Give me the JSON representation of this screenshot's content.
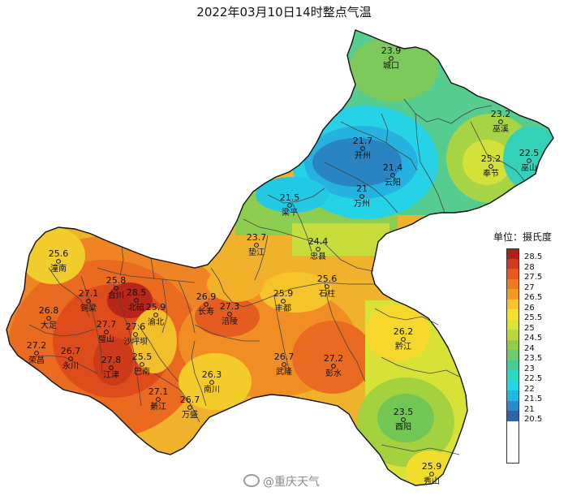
{
  "title": "2022年03月10日14时整点气温",
  "legend": {
    "title": "单位：摄氏度",
    "levels": [
      {
        "label": "28.5",
        "color": "#b01e14"
      },
      {
        "label": "28",
        "color": "#d23a1c"
      },
      {
        "label": "27.5",
        "color": "#e65a20"
      },
      {
        "label": "27",
        "color": "#ee7a22"
      },
      {
        "label": "26.5",
        "color": "#f39a26"
      },
      {
        "label": "26",
        "color": "#f7c22a"
      },
      {
        "label": "25.5",
        "color": "#f4df2c"
      },
      {
        "label": "25",
        "color": "#dde334"
      },
      {
        "label": "24.5",
        "color": "#b8d83c"
      },
      {
        "label": "24",
        "color": "#93cc4a"
      },
      {
        "label": "23.5",
        "color": "#6ccb6a"
      },
      {
        "label": "23",
        "color": "#46cc94"
      },
      {
        "label": "22.5",
        "color": "#2ed8c0"
      },
      {
        "label": "22",
        "color": "#22d6e6"
      },
      {
        "label": "21.5",
        "color": "#22b8e2"
      },
      {
        "label": "21",
        "color": "#2a8cc8"
      },
      {
        "label": "20.5",
        "color": "#2e66a8"
      }
    ]
  },
  "stations": [
    {
      "value": "23.9",
      "name": "城口"
    },
    {
      "value": "23.2",
      "name": "巫溪"
    },
    {
      "value": "22.5",
      "name": "巫山"
    },
    {
      "value": "25.2",
      "name": "奉节"
    },
    {
      "value": "21.7",
      "name": "开州"
    },
    {
      "value": "21.4",
      "name": "云阳"
    },
    {
      "value": "21",
      "name": "万州"
    },
    {
      "value": "21.5",
      "name": "梁平"
    },
    {
      "value": "23.7",
      "name": "垫江"
    },
    {
      "value": "24.4",
      "name": "忠县"
    },
    {
      "value": "25.6",
      "name": "石柱"
    },
    {
      "value": "25.6",
      "name": "潼南"
    },
    {
      "value": "25.8",
      "name": "合川"
    },
    {
      "value": "27.1",
      "name": "铜梁"
    },
    {
      "value": "28.5",
      "name": "北碚"
    },
    {
      "value": "26.8",
      "name": "大足"
    },
    {
      "value": "25.9",
      "name": "渝北"
    },
    {
      "value": "27.7",
      "name": "璧山"
    },
    {
      "value": "27.6",
      "name": "沙坪坝"
    },
    {
      "value": "27.2",
      "name": "荣昌"
    },
    {
      "value": "26.7",
      "name": "永川"
    },
    {
      "value": "27.8",
      "name": "江津"
    },
    {
      "value": "25.5",
      "name": "巴南"
    },
    {
      "value": "26.9",
      "name": "长寿"
    },
    {
      "value": "27.3",
      "name": "涪陵"
    },
    {
      "value": "25.9",
      "name": "丰都"
    },
    {
      "value": "26.3",
      "name": "南川"
    },
    {
      "value": "27.1",
      "name": "綦江"
    },
    {
      "value": "26.7",
      "name": "万盛"
    },
    {
      "value": "26.7",
      "name": "武隆"
    },
    {
      "value": "27.2",
      "name": "彭水"
    },
    {
      "value": "26.2",
      "name": "黔江"
    },
    {
      "value": "23.5",
      "name": "酉阳"
    },
    {
      "value": "25.9",
      "name": "秀山"
    }
  ],
  "watermark": "@重庆天气"
}
